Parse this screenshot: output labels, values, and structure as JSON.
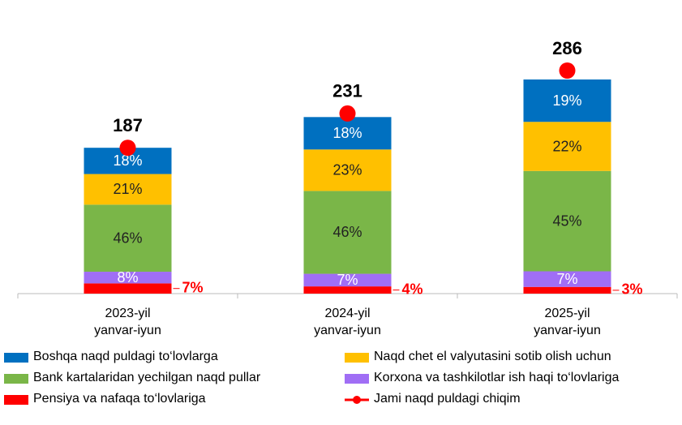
{
  "chart_data": {
    "type": "stacked_bar",
    "categories": [
      "2023-yil yanvar-iyun",
      "2024-yil yanvar-iyun",
      "2025-yil yanvar-iyun"
    ],
    "series": [
      {
        "name": "Pensiya va nafaqa to‘lovlariga",
        "color": "#ff0000",
        "values": [
          7,
          4,
          3
        ],
        "value_labels": [
          "7%",
          "4%",
          "3%"
        ]
      },
      {
        "name": "Korxona va tashkilotlar ish haqi to‘lovlariga",
        "color": "#a06ef5",
        "values": [
          8,
          7,
          7
        ],
        "value_labels": [
          "8%",
          "7%",
          "7%"
        ]
      },
      {
        "name": "Bank kartalaridan yechilgan naqd pullar",
        "color": "#7ab648",
        "values": [
          46,
          46,
          45
        ],
        "value_labels": [
          "46%",
          "46%",
          "45%"
        ]
      },
      {
        "name": "Naqd chet el valyutasini sotib olish uchun",
        "color": "#ffc000",
        "values": [
          21,
          23,
          22
        ],
        "value_labels": [
          "21%",
          "23%",
          "22%"
        ]
      },
      {
        "name": "Boshqa naqd puldagi to‘lovlarga",
        "color": "#0070c0",
        "values": [
          18,
          18,
          19
        ],
        "value_labels": [
          "18%",
          "18%",
          "19%"
        ]
      }
    ],
    "total": {
      "name": "Jami naqd puldagi chiqim",
      "color": "#ff0000",
      "values": [
        187,
        231,
        286
      ]
    }
  }
}
